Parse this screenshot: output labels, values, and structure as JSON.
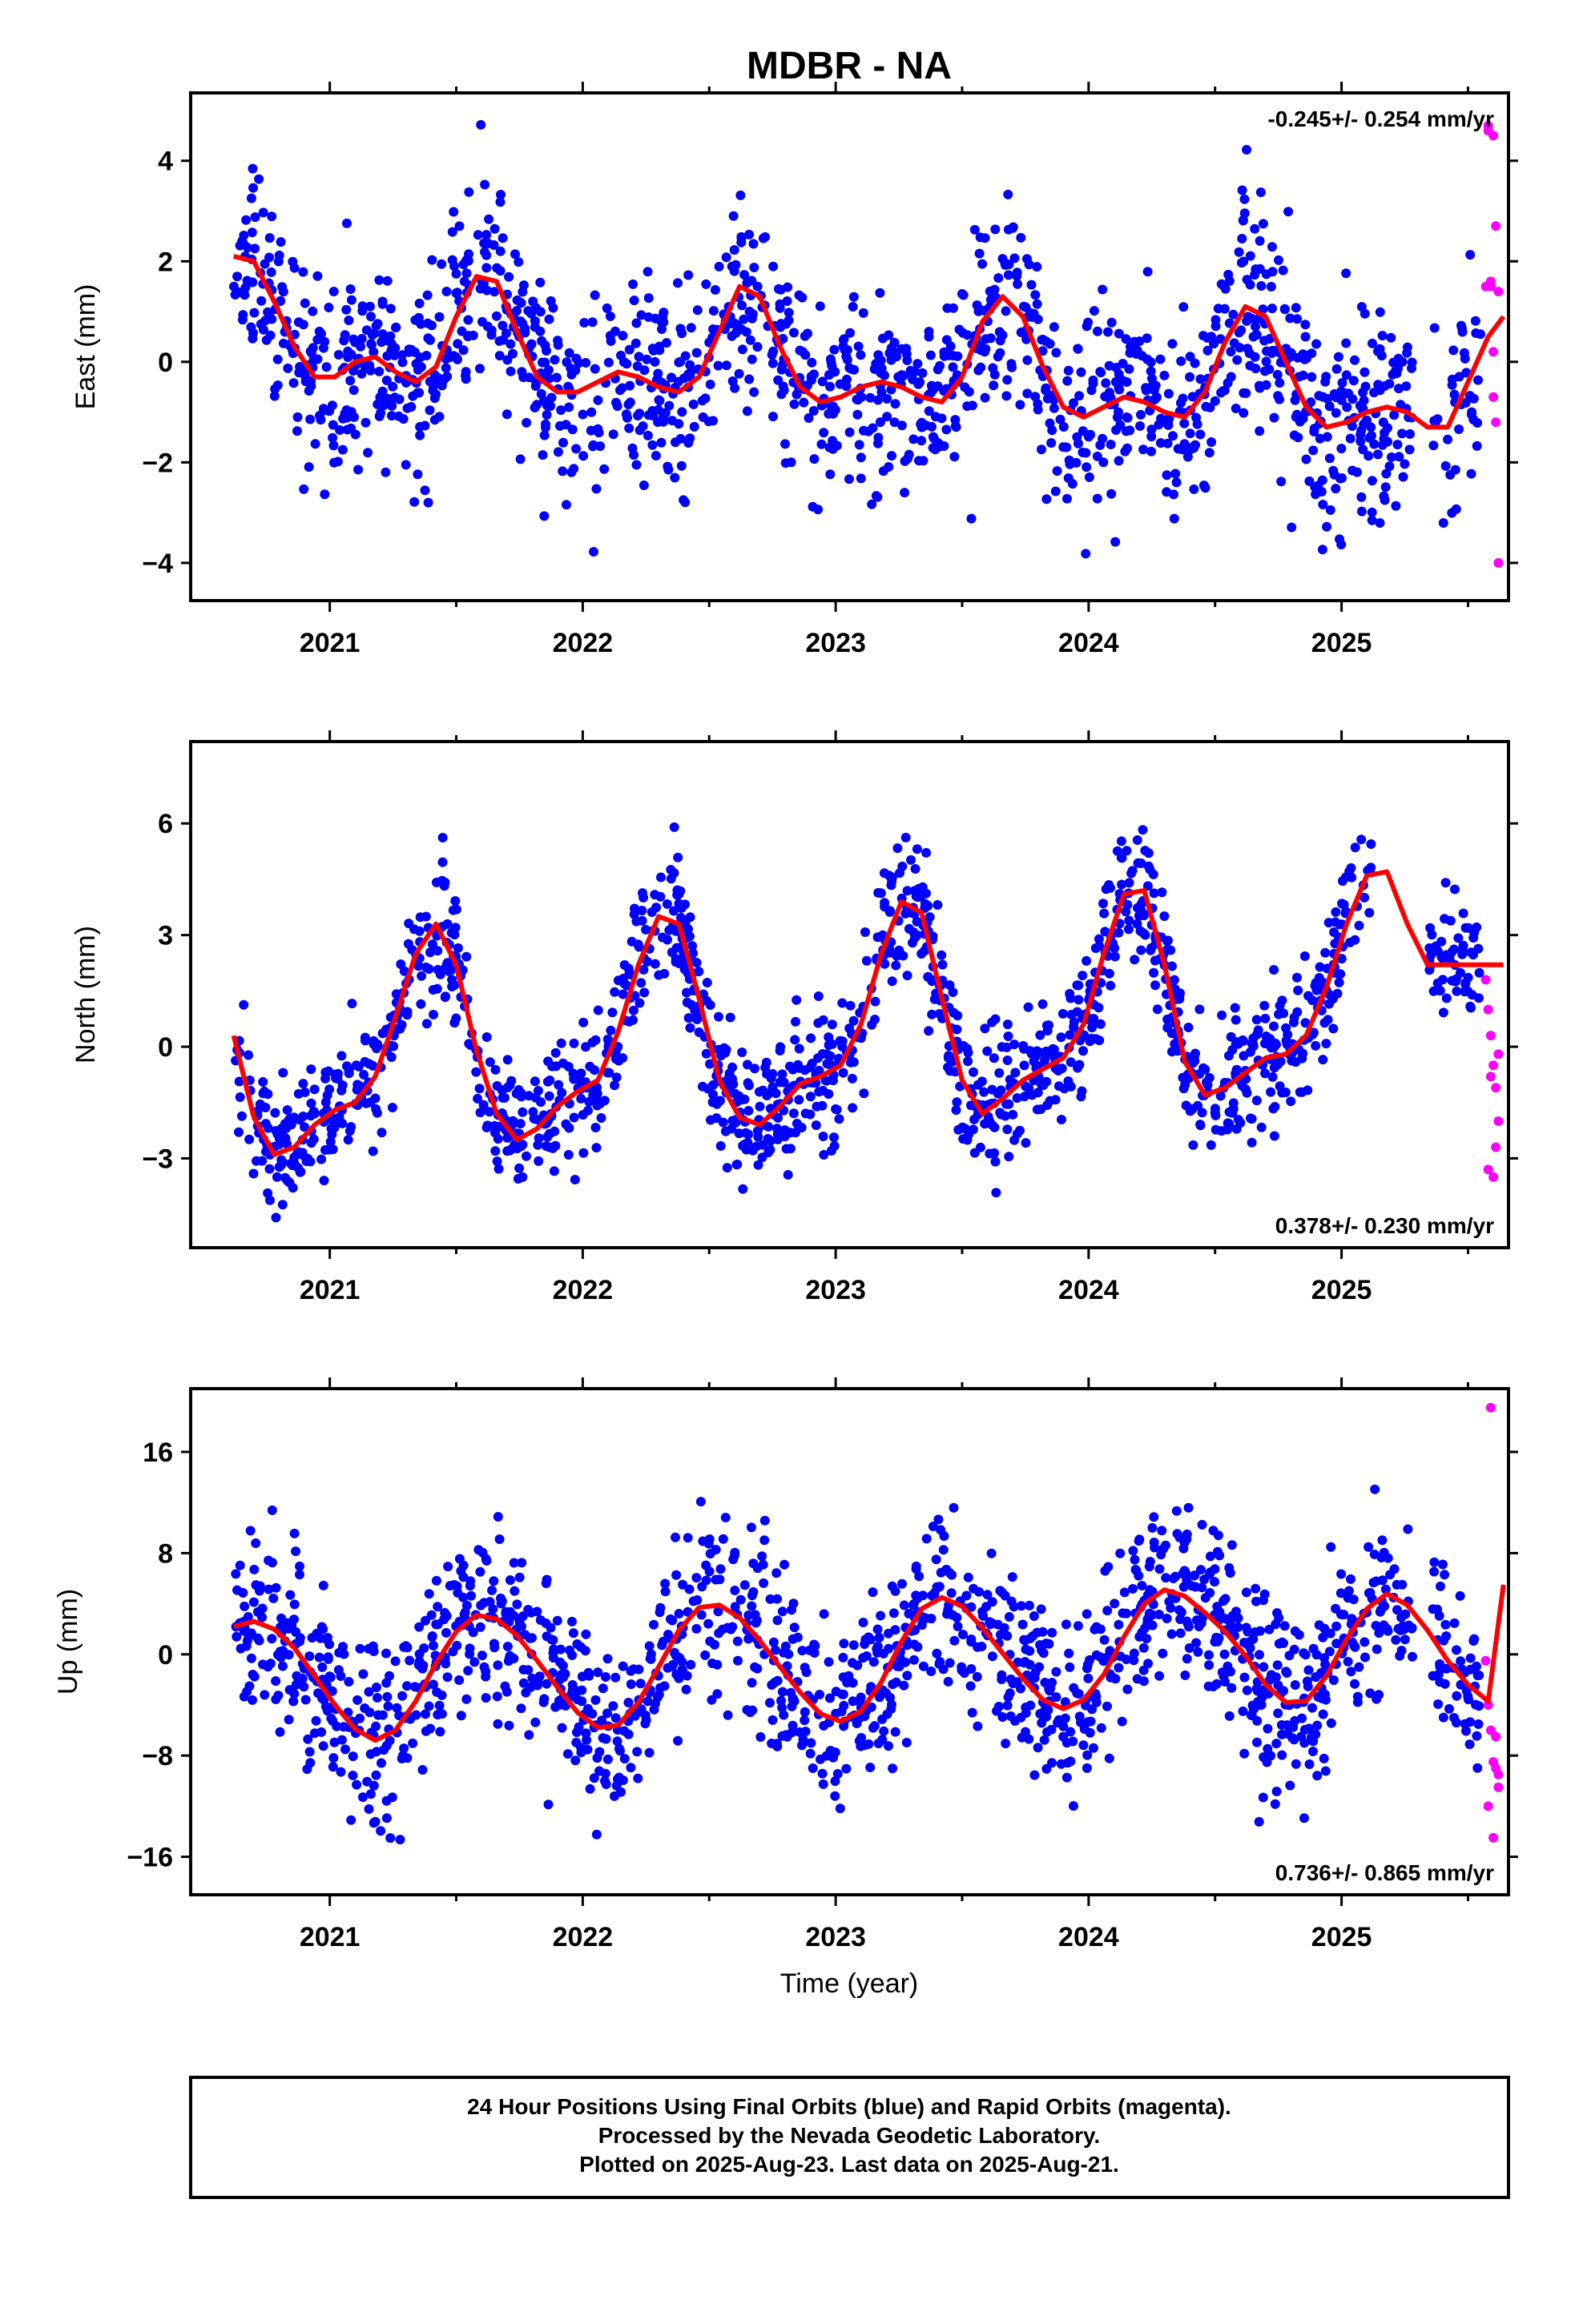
{
  "title": "MDBR - NA",
  "colors": {
    "final": "#0000ff",
    "rapid": "#ff00ff",
    "model": "#ff0000",
    "frame": "#000000"
  },
  "chart_data": [
    {
      "type": "scatter",
      "component": "east",
      "ylabel": "East (mm)",
      "xlabel": "",
      "rate_label": "-0.245+/- 0.254 mm/yr",
      "xlim": [
        2020.45,
        2025.66
      ],
      "ylim": [
        -4.75,
        5.35
      ],
      "yticks": [
        -4,
        -2,
        0,
        2,
        4
      ],
      "ytick_labels": [
        "−4",
        "−2",
        "0",
        "2",
        "4"
      ],
      "xticks": [
        2021,
        2022,
        2023,
        2024,
        2025
      ],
      "xtick_labels": [
        "2021",
        "2022",
        "2023",
        "2024",
        "2025"
      ],
      "series": [
        {
          "kind": "final",
          "x_range": [
            2020.62,
            2025.55
          ],
          "count": 1500
        },
        {
          "kind": "rapid",
          "x": [
            2025.57,
            2025.58,
            2025.59,
            2025.6,
            2025.61,
            2025.62,
            2025.58,
            2025.6,
            2025.61,
            2025.59,
            2025.62,
            2025.6
          ],
          "y": [
            1.5,
            4.6,
            1.5,
            0.2,
            -1.2,
            -4.0,
            4.7,
            -0.7,
            2.7,
            1.6,
            1.4,
            4.5
          ]
        }
      ],
      "model": {
        "x": [
          2020.62,
          2020.7,
          2020.78,
          2020.86,
          2020.94,
          2021.02,
          2021.1,
          2021.18,
          2021.26,
          2021.34,
          2021.42,
          2021.5,
          2021.58,
          2021.66,
          2021.74,
          2021.82,
          2021.9,
          2021.98,
          2022.06,
          2022.14,
          2022.22,
          2022.3,
          2022.38,
          2022.46,
          2022.54,
          2022.62,
          2022.7,
          2022.78,
          2022.86,
          2022.94,
          2023.02,
          2023.1,
          2023.18,
          2023.26,
          2023.34,
          2023.42,
          2023.5,
          2023.58,
          2023.66,
          2023.74,
          2023.82,
          2023.9,
          2023.98,
          2024.06,
          2024.14,
          2024.22,
          2024.3,
          2024.38,
          2024.46,
          2024.54,
          2024.62,
          2024.7,
          2024.78,
          2024.86,
          2024.94,
          2025.02,
          2025.1,
          2025.18,
          2025.26,
          2025.34,
          2025.42,
          2025.5,
          2025.58,
          2025.64
        ],
        "y": [
          2.1,
          2.0,
          1.2,
          0.3,
          -0.3,
          -0.3,
          -0.0,
          0.1,
          -0.2,
          -0.4,
          -0.1,
          0.9,
          1.7,
          1.6,
          0.6,
          -0.3,
          -0.6,
          -0.6,
          -0.4,
          -0.2,
          -0.3,
          -0.5,
          -0.6,
          -0.3,
          0.6,
          1.5,
          1.3,
          0.3,
          -0.5,
          -0.8,
          -0.7,
          -0.5,
          -0.4,
          -0.5,
          -0.7,
          -0.8,
          -0.3,
          0.8,
          1.3,
          0.9,
          -0.1,
          -0.9,
          -1.1,
          -0.9,
          -0.7,
          -0.8,
          -1.0,
          -1.1,
          -0.6,
          0.4,
          1.1,
          0.9,
          0.0,
          -0.9,
          -1.3,
          -1.2,
          -1.0,
          -0.9,
          -1.0,
          -1.3,
          -1.3,
          -0.4,
          0.5,
          0.9
        ]
      }
    },
    {
      "type": "scatter",
      "component": "north",
      "ylabel": "North (mm)",
      "xlabel": "",
      "rate_label": "0.378+/- 0.230 mm/yr",
      "xlim": [
        2020.45,
        2025.66
      ],
      "ylim": [
        -5.4,
        8.2
      ],
      "yticks": [
        -3,
        0,
        3,
        6
      ],
      "ytick_labels": [
        "−3",
        "0",
        "3",
        "6"
      ],
      "xticks": [
        2021,
        2022,
        2023,
        2024,
        2025
      ],
      "xtick_labels": [
        "2021",
        "2022",
        "2023",
        "2024",
        "2025"
      ],
      "series": [
        {
          "kind": "final",
          "x_range": [
            2020.62,
            2025.55
          ],
          "count": 1500
        },
        {
          "kind": "rapid",
          "x": [
            2025.57,
            2025.58,
            2025.59,
            2025.6,
            2025.61,
            2025.62,
            2025.58,
            2025.6,
            2025.61,
            2025.59,
            2025.62
          ],
          "y": [
            1.8,
            1.0,
            0.3,
            -0.5,
            -1.1,
            -2.0,
            -3.3,
            -3.5,
            -2.7,
            -0.8,
            -0.2
          ]
        }
      ],
      "model": {
        "x": [
          2020.62,
          2020.7,
          2020.78,
          2020.86,
          2020.94,
          2021.02,
          2021.1,
          2021.18,
          2021.26,
          2021.34,
          2021.42,
          2021.5,
          2021.58,
          2021.66,
          2021.74,
          2021.82,
          2021.9,
          2021.98,
          2022.06,
          2022.14,
          2022.22,
          2022.3,
          2022.38,
          2022.46,
          2022.54,
          2022.62,
          2022.7,
          2022.78,
          2022.86,
          2022.94,
          2023.02,
          2023.1,
          2023.18,
          2023.26,
          2023.34,
          2023.42,
          2023.5,
          2023.58,
          2023.66,
          2023.74,
          2023.82,
          2023.9,
          2023.98,
          2024.06,
          2024.14,
          2024.22,
          2024.3,
          2024.38,
          2024.46,
          2024.54,
          2024.62,
          2024.7,
          2024.78,
          2024.86,
          2024.94,
          2025.02,
          2025.1,
          2025.18,
          2025.26,
          2025.34,
          2025.42,
          2025.5,
          2025.58,
          2025.64
        ],
        "y": [
          0.3,
          -1.9,
          -2.9,
          -2.7,
          -2.1,
          -1.7,
          -1.5,
          -0.8,
          0.8,
          2.5,
          3.3,
          2.2,
          -0.1,
          -1.8,
          -2.5,
          -2.2,
          -1.6,
          -1.2,
          -0.9,
          0.4,
          2.2,
          3.5,
          3.3,
          1.3,
          -0.9,
          -1.9,
          -2.1,
          -1.6,
          -1.0,
          -0.8,
          -0.5,
          0.6,
          2.5,
          3.9,
          3.6,
          1.3,
          -0.9,
          -1.8,
          -1.4,
          -0.9,
          -0.6,
          -0.3,
          0.6,
          2.5,
          4.1,
          4.2,
          2.2,
          -0.4,
          -1.3,
          -1.1,
          -0.7,
          -0.3,
          -0.2,
          0.3,
          1.6,
          3.3,
          4.6,
          4.7,
          3.3,
          2.2,
          2.2,
          2.2,
          2.2,
          2.2
        ]
      }
    },
    {
      "type": "scatter",
      "component": "up",
      "ylabel": "Up (mm)",
      "xlabel": "Time (year)",
      "rate_label": "0.736+/- 0.865 mm/yr",
      "xlim": [
        2020.45,
        2025.66
      ],
      "ylim": [
        -19,
        21
      ],
      "yticks": [
        -16,
        -8,
        0,
        8,
        16
      ],
      "ytick_labels": [
        "−16",
        "−8",
        "0",
        "8",
        "16"
      ],
      "xticks": [
        2021,
        2022,
        2023,
        2024,
        2025
      ],
      "xtick_labels": [
        "2021",
        "2022",
        "2023",
        "2024",
        "2025"
      ],
      "series": [
        {
          "kind": "final",
          "x_range": [
            2020.62,
            2025.55
          ],
          "count": 1500
        },
        {
          "kind": "rapid",
          "x": [
            2025.57,
            2025.58,
            2025.59,
            2025.6,
            2025.61,
            2025.62,
            2025.58,
            2025.6,
            2025.61,
            2025.59,
            2025.62
          ],
          "y": [
            -0.5,
            -4.0,
            -6.0,
            -8.5,
            -9.0,
            -10.5,
            -12.0,
            -14.5,
            -6.5,
            19.5,
            -9.5
          ]
        }
      ],
      "model": {
        "x": [
          2020.62,
          2020.7,
          2020.78,
          2020.86,
          2020.94,
          2021.02,
          2021.1,
          2021.18,
          2021.26,
          2021.34,
          2021.42,
          2021.5,
          2021.58,
          2021.66,
          2021.74,
          2021.82,
          2021.9,
          2021.98,
          2022.06,
          2022.14,
          2022.22,
          2022.3,
          2022.38,
          2022.46,
          2022.54,
          2022.62,
          2022.7,
          2022.78,
          2022.86,
          2022.94,
          2023.02,
          2023.1,
          2023.18,
          2023.26,
          2023.34,
          2023.42,
          2023.5,
          2023.58,
          2023.66,
          2023.74,
          2023.82,
          2023.9,
          2023.98,
          2024.06,
          2024.14,
          2024.22,
          2024.3,
          2024.38,
          2024.46,
          2024.54,
          2024.62,
          2024.7,
          2024.78,
          2024.86,
          2024.94,
          2025.02,
          2025.1,
          2025.18,
          2025.26,
          2025.34,
          2025.42,
          2025.5,
          2025.58,
          2025.64
        ],
        "y": [
          2.2,
          2.6,
          2.0,
          0.5,
          -1.7,
          -4.0,
          -5.9,
          -6.8,
          -6.0,
          -3.7,
          -0.7,
          1.8,
          3.1,
          2.8,
          1.5,
          -0.5,
          -2.6,
          -4.6,
          -5.8,
          -5.6,
          -3.8,
          -1.0,
          1.9,
          3.7,
          3.9,
          2.9,
          1.1,
          -1.0,
          -3.0,
          -4.7,
          -5.3,
          -4.5,
          -2.2,
          1.0,
          3.6,
          4.5,
          3.8,
          2.1,
          0.1,
          -1.9,
          -3.6,
          -4.3,
          -3.6,
          -1.6,
          1.4,
          4.0,
          5.1,
          4.6,
          3.3,
          1.8,
          -0.1,
          -2.4,
          -3.8,
          -3.7,
          -1.7,
          1.2,
          3.6,
          4.8,
          3.9,
          1.9,
          -0.5,
          -2.4,
          -3.7,
          5.5
        ]
      }
    }
  ],
  "footer": {
    "line1": "24 Hour Positions Using Final Orbits (blue) and Rapid Orbits (magenta).",
    "line2": "Processed by the Nevada Geodetic Laboratory.",
    "line3": "Plotted on 2025-Aug-23. Last data on 2025-Aug-21."
  }
}
